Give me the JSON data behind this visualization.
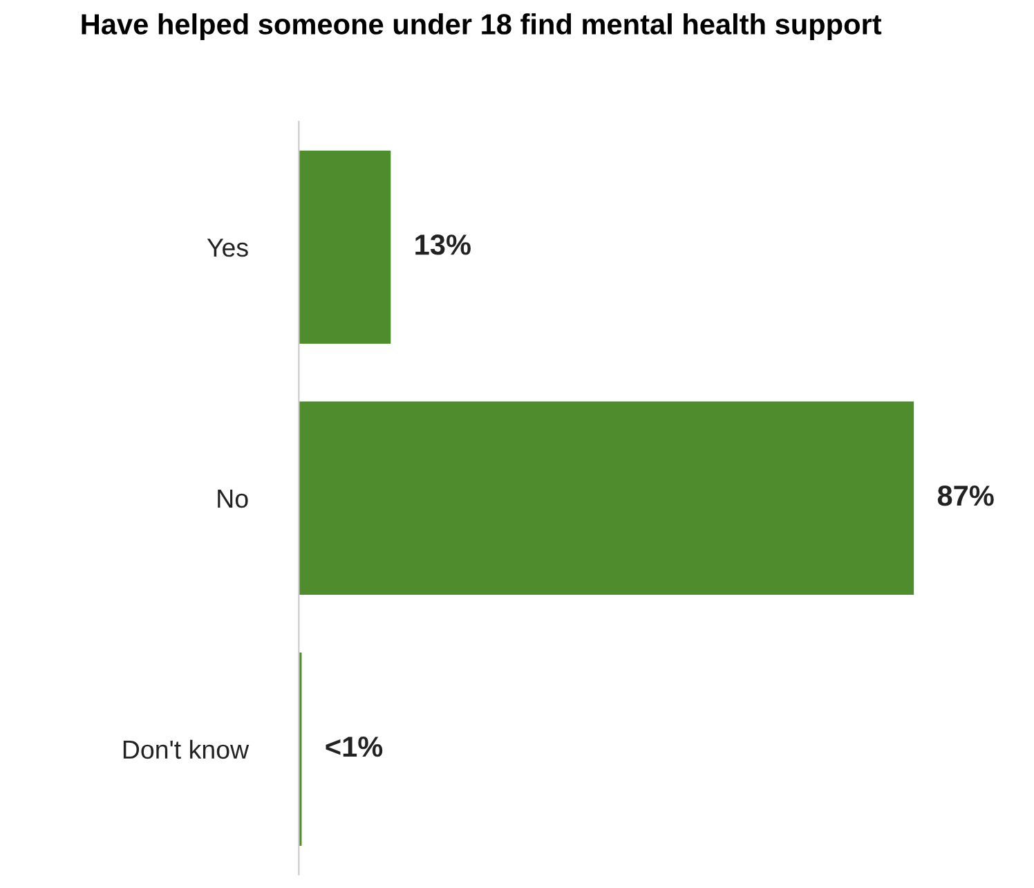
{
  "chart_data": {
    "type": "bar",
    "orientation": "horizontal",
    "title": "Have helped someone under 18 find mental health support",
    "categories": [
      "Yes",
      "No",
      "Don't know"
    ],
    "values": [
      13,
      87,
      0.4
    ],
    "value_labels": [
      "13%",
      "87%",
      "<1%"
    ],
    "color": "#4e8c2e",
    "grid": false,
    "legend": false
  }
}
